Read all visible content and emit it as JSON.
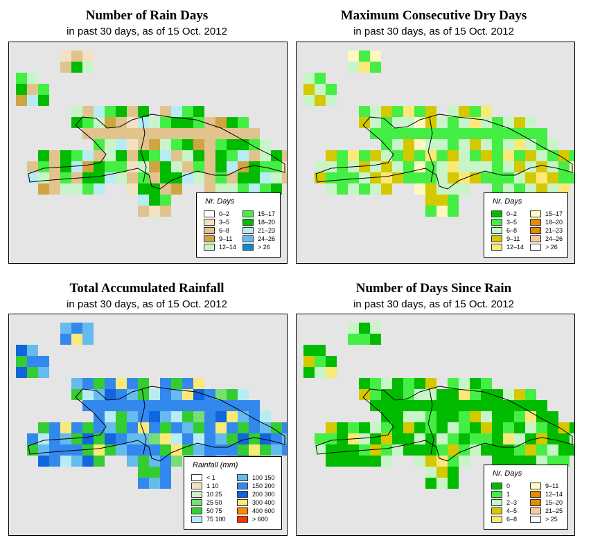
{
  "panels": [
    {
      "id": "rain-days",
      "title": "Number of Rain Days",
      "subtitle": "in past 30 days, as of  15 Oct. 2012",
      "legend_title": "Nr. Days",
      "legend": [
        {
          "label": "0–2",
          "color": "#ffffff"
        },
        {
          "label": "3–5",
          "color": "#f2e2c2"
        },
        {
          "label": "6–8",
          "color": "#e1c38e"
        },
        {
          "label": "9–11",
          "color": "#cfa443"
        },
        {
          "label": "12–14",
          "color": "#c8f5c8"
        },
        {
          "label": "15–17",
          "color": "#44ee44"
        },
        {
          "label": "18–20",
          "color": "#00bb00"
        },
        {
          "label": "21–23",
          "color": "#b8ecf5"
        },
        {
          "label": "24–26",
          "color": "#66bbee"
        },
        {
          "label": "> 26",
          "color": "#1188cc"
        }
      ]
    },
    {
      "id": "max-dry-days",
      "title": "Maximum Consecutive Dry Days",
      "subtitle": "in past 30 days, as of  15 Oct. 2012",
      "legend_title": "Nr. Days",
      "legend": [
        {
          "label": "0–2",
          "color": "#00bb00"
        },
        {
          "label": "3–5",
          "color": "#44ee44"
        },
        {
          "label": "6–8",
          "color": "#c8f5c8"
        },
        {
          "label": "9–11",
          "color": "#d4c800"
        },
        {
          "label": "12–14",
          "color": "#fae978"
        },
        {
          "label": "15–17",
          "color": "#fff8c0"
        },
        {
          "label": "18–20",
          "color": "#e68a00"
        },
        {
          "label": "21–23",
          "color": "#e68a00"
        },
        {
          "label": "24–26",
          "color": "#f8c8a0"
        },
        {
          "label": "> 26",
          "color": "#ffffff"
        }
      ]
    },
    {
      "id": "total-rainfall",
      "title": "Total Accumulated Rainfall",
      "subtitle": "in past 30 days, as of  15 Oct. 2012",
      "legend_title": "Rainfall (mm)",
      "legend": [
        {
          "label": "< 1",
          "color": "#ffffff"
        },
        {
          "label": "1   10",
          "color": "#f2e2c2"
        },
        {
          "label": "10   25",
          "color": "#c8f5c8"
        },
        {
          "label": "25   50",
          "color": "#77dd77"
        },
        {
          "label": "50   75",
          "color": "#33cc33"
        },
        {
          "label": "75  100",
          "color": "#b8ecf5"
        },
        {
          "label": "100  150",
          "color": "#66bbee"
        },
        {
          "label": "150  200",
          "color": "#3388ee"
        },
        {
          "label": "200  300",
          "color": "#1166dd"
        },
        {
          "label": "300  400",
          "color": "#fae978"
        },
        {
          "label": "400  600",
          "color": "#ff8800"
        },
        {
          "label": "> 600",
          "color": "#ff3300"
        }
      ]
    },
    {
      "id": "days-since-rain",
      "title": "Number of Days Since Rain",
      "subtitle": "in past 30 days, as of  15 Oct. 2012",
      "legend_title": "Nr. Days",
      "legend": [
        {
          "label": "0",
          "color": "#00bb00"
        },
        {
          "label": "1",
          "color": "#44ee44"
        },
        {
          "label": "2–3",
          "color": "#c8f5c8"
        },
        {
          "label": "4–5",
          "color": "#d4c800"
        },
        {
          "label": "6–8",
          "color": "#fae978"
        },
        {
          "label": "9–11",
          "color": "#fff8c0"
        },
        {
          "label": "12–14",
          "color": "#e68a00"
        },
        {
          "label": "15–20",
          "color": "#e68a00"
        },
        {
          "label": "21–25",
          "color": "#f8c8a0"
        },
        {
          "label": "> 25",
          "color": "#ffffff"
        }
      ]
    }
  ]
}
